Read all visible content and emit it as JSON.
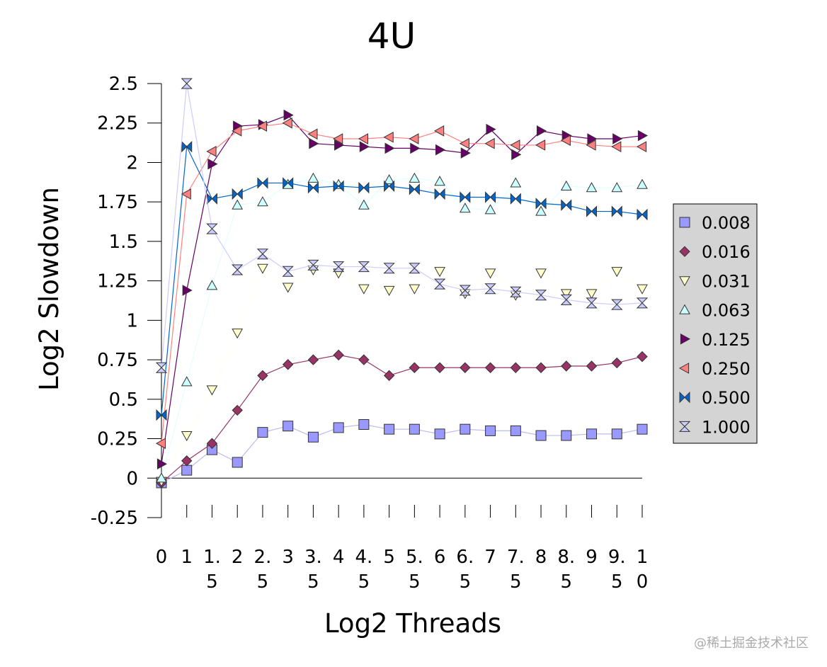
{
  "watermark": "@稀土掘金技术社区",
  "chart_data": {
    "type": "line",
    "title": "4U",
    "xlabel": "Log2 Threads",
    "ylabel": "Log2 Slowdown",
    "x": [
      0,
      1,
      1.5,
      2,
      2.5,
      3,
      3.5,
      4,
      4.5,
      5,
      5.5,
      6,
      6.5,
      7,
      7.5,
      8,
      8.5,
      9,
      9.5,
      10
    ],
    "x_tick_labels": [
      [
        "0"
      ],
      [
        "1"
      ],
      [
        "1.",
        "5"
      ],
      [
        "2"
      ],
      [
        "2.",
        "5"
      ],
      [
        "3"
      ],
      [
        "3.",
        "5"
      ],
      [
        "4"
      ],
      [
        "4.",
        "5"
      ],
      [
        "5"
      ],
      [
        "5.",
        "5"
      ],
      [
        "6"
      ],
      [
        "6.",
        "5"
      ],
      [
        "7"
      ],
      [
        "7.",
        "5"
      ],
      [
        "8"
      ],
      [
        "8.",
        "5"
      ],
      [
        "9"
      ],
      [
        "9.",
        "5"
      ],
      [
        "1",
        "0"
      ]
    ],
    "ylim": [
      -0.25,
      2.5
    ],
    "y_ticks": [
      "-0.25",
      "0",
      "0.25",
      "0.5",
      "0.75",
      "1",
      "1.25",
      "1.5",
      "1.75",
      "2",
      "2.25",
      "2.5"
    ],
    "legend_position": "right",
    "grid": false,
    "series": [
      {
        "name": "0.008",
        "color": "#9999ff",
        "stroke": "#bbbbee",
        "marker": "square",
        "values": [
          -0.03,
          0.05,
          0.18,
          0.1,
          0.29,
          0.33,
          0.26,
          0.32,
          0.34,
          0.31,
          0.31,
          0.28,
          0.31,
          0.3,
          0.3,
          0.27,
          0.27,
          0.28,
          0.28,
          0.31
        ]
      },
      {
        "name": "0.016",
        "color": "#993366",
        "stroke": "#993366",
        "marker": "diamond",
        "values": [
          -0.03,
          0.11,
          0.22,
          0.43,
          0.65,
          0.72,
          0.75,
          0.78,
          0.75,
          0.65,
          0.7,
          0.7,
          0.7,
          0.7,
          0.7,
          0.7,
          0.71,
          0.71,
          0.73,
          0.77
        ]
      },
      {
        "name": "0.031",
        "color": "#ffffcc",
        "stroke": "#fffff0",
        "marker": "triangle-down",
        "values": [
          -0.02,
          0.27,
          0.56,
          0.92,
          1.33,
          1.21,
          1.32,
          1.3,
          1.2,
          1.19,
          1.2,
          1.31,
          1.17,
          1.3,
          1.16,
          1.3,
          1.17,
          1.17,
          1.31,
          1.2
        ]
      },
      {
        "name": "0.063",
        "color": "#ccffff",
        "stroke": "#e0ffff",
        "marker": "triangle-up",
        "values": [
          0.0,
          0.61,
          1.22,
          1.73,
          1.75,
          1.86,
          1.9,
          1.86,
          1.73,
          1.89,
          1.9,
          1.88,
          1.71,
          1.7,
          1.87,
          1.69,
          1.85,
          1.84,
          1.84,
          1.86
        ]
      },
      {
        "name": "0.125",
        "color": "#660066",
        "stroke": "#660066",
        "marker": "triangle-right",
        "values": [
          0.09,
          1.19,
          1.99,
          2.23,
          2.24,
          2.3,
          2.12,
          2.11,
          2.1,
          2.09,
          2.09,
          2.08,
          2.06,
          2.21,
          2.05,
          2.2,
          2.17,
          2.15,
          2.15,
          2.17
        ]
      },
      {
        "name": "0.250",
        "color": "#ff8080",
        "stroke": "#ff8080",
        "marker": "triangle-left",
        "values": [
          0.22,
          1.8,
          2.07,
          2.2,
          2.23,
          2.25,
          2.18,
          2.15,
          2.15,
          2.16,
          2.15,
          2.2,
          2.12,
          2.12,
          2.11,
          2.11,
          2.14,
          2.11,
          2.1,
          2.1
        ]
      },
      {
        "name": "0.500",
        "color": "#0066cc",
        "stroke": "#0066cc",
        "marker": "bowtie",
        "values": [
          0.4,
          2.1,
          1.77,
          1.8,
          1.87,
          1.87,
          1.84,
          1.85,
          1.84,
          1.85,
          1.83,
          1.8,
          1.78,
          1.78,
          1.77,
          1.74,
          1.73,
          1.69,
          1.69,
          1.67
        ]
      },
      {
        "name": "1.000",
        "color": "#ccccff",
        "stroke": "#ccccff",
        "marker": "hourglass",
        "values": [
          0.7,
          2.5,
          1.58,
          1.32,
          1.42,
          1.31,
          1.35,
          1.34,
          1.34,
          1.33,
          1.33,
          1.23,
          1.19,
          1.2,
          1.18,
          1.16,
          1.13,
          1.11,
          1.1,
          1.11
        ]
      }
    ]
  }
}
